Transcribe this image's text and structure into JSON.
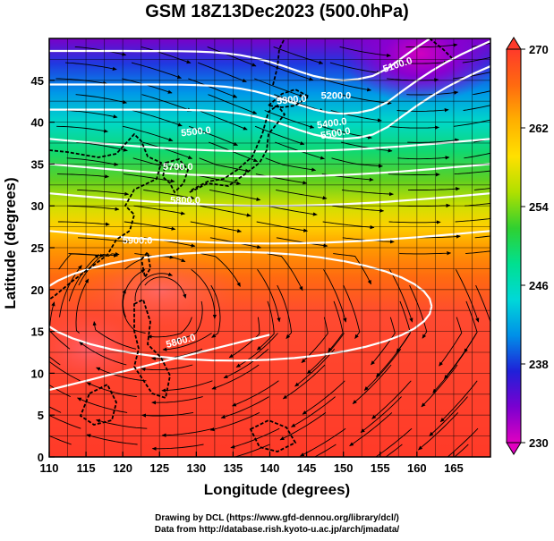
{
  "title": "GSM 18Z13Dec2023 (500.0hPa)",
  "xlabel": "Longitude (degrees)",
  "ylabel": "Latitude  (degrees)",
  "credits": [
    "Drawing by DCL (https://www.gfd-dennou.org/library/dcl/)",
    "Data from http://database.rish.kyoto-u.ac.jp/arch/jmadata/"
  ],
  "map": {
    "lon_range": [
      110,
      170
    ],
    "lat_range": [
      0,
      50
    ],
    "lon_ticks": [
      "110",
      "115",
      "120",
      "125",
      "130",
      "135",
      "140",
      "145",
      "150",
      "155",
      "160",
      "165"
    ],
    "lat_ticks": [
      "0",
      "5",
      "10",
      "15",
      "20",
      "25",
      "30",
      "35",
      "40",
      "45"
    ],
    "grid": true
  },
  "colorbar": {
    "min": 230,
    "max": 270,
    "ticks": [
      "230",
      "238",
      "246",
      "254",
      "262",
      "270"
    ]
  },
  "contour_labels": [
    {
      "text": "5100.0",
      "lon": 157.5,
      "lat": 46.5,
      "rot": -18
    },
    {
      "text": "5200.0",
      "lon": 149,
      "lat": 42.8,
      "rot": 0
    },
    {
      "text": "5300.0",
      "lon": 143,
      "lat": 42.3,
      "rot": -5
    },
    {
      "text": "5400.0",
      "lon": 148.5,
      "lat": 39.5,
      "rot": -8
    },
    {
      "text": "5500.0",
      "lon": 130,
      "lat": 38.5,
      "rot": -6
    },
    {
      "text": "5500.0",
      "lon": 149,
      "lat": 38.3,
      "rot": -10
    },
    {
      "text": "5700.0",
      "lon": 127.5,
      "lat": 34.3,
      "rot": 0
    },
    {
      "text": "5800.0",
      "lon": 128.5,
      "lat": 30.3,
      "rot": 0
    },
    {
      "text": "5900.0",
      "lon": 122,
      "lat": 25.5,
      "rot": 0
    },
    {
      "text": "5800.0",
      "lon": 128,
      "lat": 13.5,
      "rot": -15
    }
  ],
  "colors": {
    "ramp": [
      "#e000c0",
      "#7a00d0",
      "#1f20d8",
      "#0090e8",
      "#00d8d8",
      "#00e090",
      "#30d030",
      "#b0e000",
      "#ffe000",
      "#ffb000",
      "#ff6a10",
      "#ff3a2a"
    ],
    "contour": "#ffffff",
    "coast": "#000000",
    "grid": "#000000"
  }
}
